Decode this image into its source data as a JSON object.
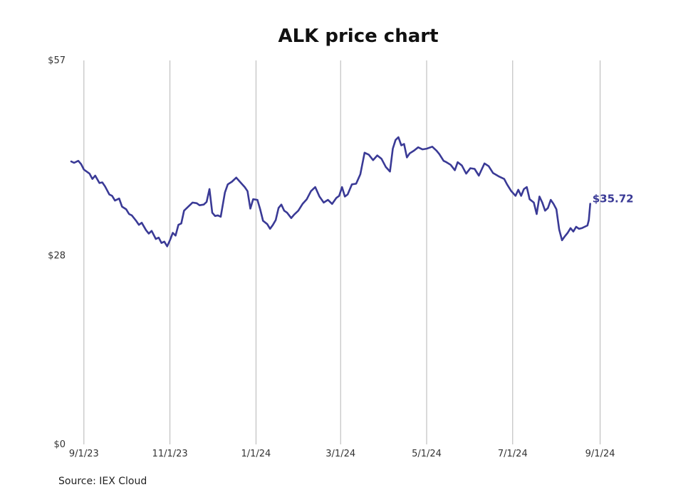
{
  "source_text": "Source: IEX Cloud",
  "chart_data": {
    "type": "line",
    "title": "ALK price chart",
    "xlabel": "",
    "ylabel": "",
    "x_ticks": [
      {
        "date": "2023-09-01",
        "label": "9/1/23"
      },
      {
        "date": "2023-11-01",
        "label": "11/1/23"
      },
      {
        "date": "2024-01-01",
        "label": "1/1/24"
      },
      {
        "date": "2024-03-01",
        "label": "3/1/24"
      },
      {
        "date": "2024-05-01",
        "label": "5/1/24"
      },
      {
        "date": "2024-07-01",
        "label": "7/1/24"
      },
      {
        "date": "2024-09-01",
        "label": "9/1/24"
      }
    ],
    "xlim": [
      "2023-08-23",
      "2024-09-30"
    ],
    "y_ticks": [
      {
        "value": 0,
        "label": "$0"
      },
      {
        "value": 28,
        "label": "$28"
      },
      {
        "value": 57,
        "label": "$57"
      }
    ],
    "ylim": [
      0,
      57
    ],
    "grid": {
      "vertical": true,
      "horizontal": false
    },
    "line_color": "#3a3a96",
    "end_label": "$35.72",
    "series": [
      {
        "points": [
          [
            "2023-08-23",
            42.0
          ],
          [
            "2023-08-25",
            41.8
          ],
          [
            "2023-08-28",
            42.1
          ],
          [
            "2023-08-30",
            41.6
          ],
          [
            "2023-09-01",
            40.8
          ],
          [
            "2023-09-05",
            40.2
          ],
          [
            "2023-09-07",
            39.4
          ],
          [
            "2023-09-09",
            39.9
          ],
          [
            "2023-09-12",
            38.8
          ],
          [
            "2023-09-14",
            38.9
          ],
          [
            "2023-09-16",
            38.3
          ],
          [
            "2023-09-19",
            37.1
          ],
          [
            "2023-09-21",
            36.9
          ],
          [
            "2023-09-23",
            36.2
          ],
          [
            "2023-09-26",
            36.5
          ],
          [
            "2023-09-28",
            35.3
          ],
          [
            "2023-10-01",
            34.9
          ],
          [
            "2023-10-03",
            34.2
          ],
          [
            "2023-10-05",
            34.0
          ],
          [
            "2023-10-08",
            33.2
          ],
          [
            "2023-10-10",
            32.6
          ],
          [
            "2023-10-12",
            32.9
          ],
          [
            "2023-10-15",
            31.8
          ],
          [
            "2023-10-17",
            31.3
          ],
          [
            "2023-10-19",
            31.7
          ],
          [
            "2023-10-22",
            30.5
          ],
          [
            "2023-10-24",
            30.7
          ],
          [
            "2023-10-26",
            29.9
          ],
          [
            "2023-10-28",
            30.1
          ],
          [
            "2023-10-30",
            29.4
          ],
          [
            "2023-11-01",
            30.3
          ],
          [
            "2023-11-03",
            31.4
          ],
          [
            "2023-11-05",
            31.0
          ],
          [
            "2023-11-07",
            32.6
          ],
          [
            "2023-11-09",
            32.8
          ],
          [
            "2023-11-11",
            34.7
          ],
          [
            "2023-11-14",
            35.3
          ],
          [
            "2023-11-17",
            35.9
          ],
          [
            "2023-11-20",
            35.8
          ],
          [
            "2023-11-22",
            35.5
          ],
          [
            "2023-11-25",
            35.6
          ],
          [
            "2023-11-27",
            36.0
          ],
          [
            "2023-11-29",
            37.9
          ],
          [
            "2023-12-01",
            34.4
          ],
          [
            "2023-12-03",
            33.9
          ],
          [
            "2023-12-05",
            34.0
          ],
          [
            "2023-12-07",
            33.8
          ],
          [
            "2023-12-10",
            37.4
          ],
          [
            "2023-12-12",
            38.6
          ],
          [
            "2023-12-15",
            39.0
          ],
          [
            "2023-12-18",
            39.6
          ],
          [
            "2023-12-21",
            38.9
          ],
          [
            "2023-12-24",
            38.2
          ],
          [
            "2023-12-26",
            37.6
          ],
          [
            "2023-12-28",
            35.0
          ],
          [
            "2023-12-30",
            36.4
          ],
          [
            "2024-01-02",
            36.3
          ],
          [
            "2024-01-04",
            34.9
          ],
          [
            "2024-01-06",
            33.2
          ],
          [
            "2024-01-09",
            32.7
          ],
          [
            "2024-01-11",
            32.0
          ],
          [
            "2024-01-13",
            32.6
          ],
          [
            "2024-01-15",
            33.3
          ],
          [
            "2024-01-17",
            35.1
          ],
          [
            "2024-01-19",
            35.6
          ],
          [
            "2024-01-21",
            34.7
          ],
          [
            "2024-01-23",
            34.4
          ],
          [
            "2024-01-26",
            33.6
          ],
          [
            "2024-01-28",
            34.1
          ],
          [
            "2024-01-31",
            34.7
          ],
          [
            "2024-02-03",
            35.7
          ],
          [
            "2024-02-06",
            36.4
          ],
          [
            "2024-02-09",
            37.6
          ],
          [
            "2024-02-12",
            38.2
          ],
          [
            "2024-02-15",
            36.8
          ],
          [
            "2024-02-18",
            35.9
          ],
          [
            "2024-02-21",
            36.3
          ],
          [
            "2024-02-24",
            35.7
          ],
          [
            "2024-02-27",
            36.6
          ],
          [
            "2024-02-29",
            36.9
          ],
          [
            "2024-03-02",
            38.2
          ],
          [
            "2024-03-04",
            36.8
          ],
          [
            "2024-03-06",
            37.1
          ],
          [
            "2024-03-09",
            38.6
          ],
          [
            "2024-03-12",
            38.7
          ],
          [
            "2024-03-15",
            40.1
          ],
          [
            "2024-03-18",
            43.3
          ],
          [
            "2024-03-21",
            43.0
          ],
          [
            "2024-03-24",
            42.2
          ],
          [
            "2024-03-27",
            42.9
          ],
          [
            "2024-03-30",
            42.4
          ],
          [
            "2024-04-02",
            41.2
          ],
          [
            "2024-04-05",
            40.5
          ],
          [
            "2024-04-07",
            43.9
          ],
          [
            "2024-04-09",
            45.2
          ],
          [
            "2024-04-11",
            45.6
          ],
          [
            "2024-04-13",
            44.4
          ],
          [
            "2024-04-15",
            44.6
          ],
          [
            "2024-04-17",
            42.6
          ],
          [
            "2024-04-19",
            43.2
          ],
          [
            "2024-04-22",
            43.6
          ],
          [
            "2024-04-25",
            44.1
          ],
          [
            "2024-04-28",
            43.8
          ],
          [
            "2024-05-01",
            43.9
          ],
          [
            "2024-05-05",
            44.2
          ],
          [
            "2024-05-08",
            43.6
          ],
          [
            "2024-05-10",
            43.1
          ],
          [
            "2024-05-13",
            42.1
          ],
          [
            "2024-05-15",
            41.9
          ],
          [
            "2024-05-18",
            41.5
          ],
          [
            "2024-05-21",
            40.7
          ],
          [
            "2024-05-23",
            41.9
          ],
          [
            "2024-05-26",
            41.4
          ],
          [
            "2024-05-29",
            40.2
          ],
          [
            "2024-06-01",
            41.0
          ],
          [
            "2024-06-04",
            40.9
          ],
          [
            "2024-06-07",
            39.9
          ],
          [
            "2024-06-09",
            40.8
          ],
          [
            "2024-06-11",
            41.7
          ],
          [
            "2024-06-14",
            41.3
          ],
          [
            "2024-06-17",
            40.3
          ],
          [
            "2024-06-21",
            39.8
          ],
          [
            "2024-06-25",
            39.4
          ],
          [
            "2024-06-27",
            38.6
          ],
          [
            "2024-06-30",
            37.6
          ],
          [
            "2024-07-03",
            36.9
          ],
          [
            "2024-07-05",
            37.8
          ],
          [
            "2024-07-07",
            36.9
          ],
          [
            "2024-07-09",
            37.9
          ],
          [
            "2024-07-11",
            38.2
          ],
          [
            "2024-07-13",
            36.4
          ],
          [
            "2024-07-16",
            35.9
          ],
          [
            "2024-07-18",
            34.2
          ],
          [
            "2024-07-20",
            36.8
          ],
          [
            "2024-07-22",
            35.9
          ],
          [
            "2024-07-24",
            34.7
          ],
          [
            "2024-07-26",
            35.1
          ],
          [
            "2024-07-28",
            36.3
          ],
          [
            "2024-07-30",
            35.7
          ],
          [
            "2024-08-01",
            34.9
          ],
          [
            "2024-08-03",
            31.9
          ],
          [
            "2024-08-05",
            30.3
          ],
          [
            "2024-08-07",
            30.9
          ],
          [
            "2024-08-09",
            31.4
          ],
          [
            "2024-08-11",
            32.1
          ],
          [
            "2024-08-13",
            31.6
          ],
          [
            "2024-08-15",
            32.3
          ],
          [
            "2024-08-17",
            32.0
          ],
          [
            "2024-08-19",
            32.1
          ],
          [
            "2024-08-21",
            32.3
          ],
          [
            "2024-08-23",
            32.5
          ],
          [
            "2024-08-24",
            33.3
          ],
          [
            "2024-08-25",
            35.72
          ]
        ]
      }
    ]
  }
}
